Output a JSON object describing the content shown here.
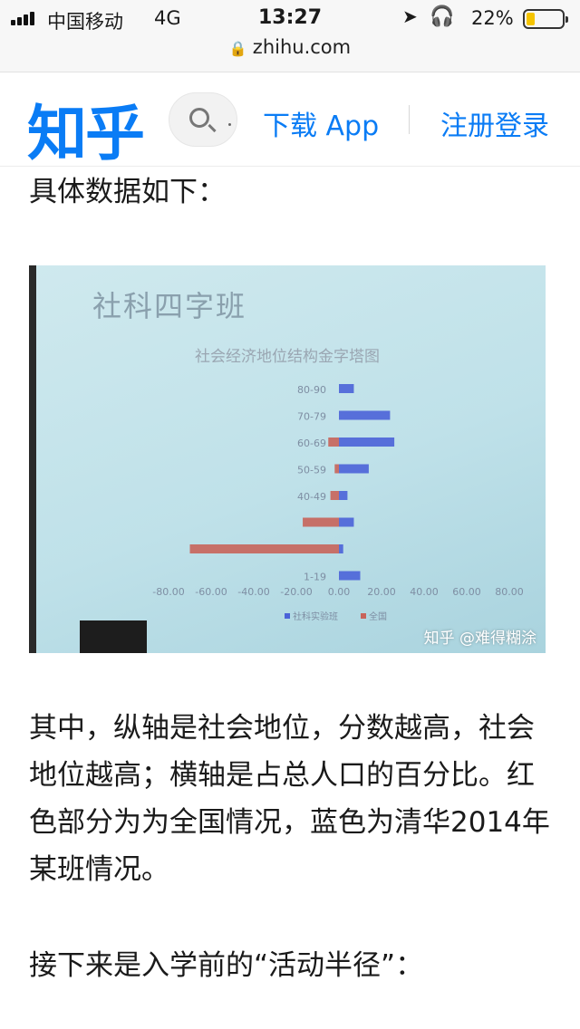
{
  "status": {
    "carrier": "中国移动",
    "network": "4G",
    "time": "13:27",
    "battery": "22%",
    "battery_level": 0.22
  },
  "url": "zhihu.com",
  "header": {
    "logo": "知乎",
    "download": "下载 App",
    "register": "注册登录"
  },
  "article": {
    "p1": "具体数据如下：",
    "p2": "其中，纵轴是社会地位，分数越高，社会地位越高；横轴是占总人口的百分比。红色部分为为全国情况，蓝色为清华2014年某班情况。",
    "p3": "接下来是入学前的“活动半径”："
  },
  "photo": {
    "slide_title": "社科四字班",
    "watermark": "知乎 @难得糊涂",
    "chart_data": {
      "type": "bar",
      "orientation": "horizontal",
      "title": "社会经济地位结构金字塔图",
      "categories": [
        "80-90",
        "70-79",
        "60-69",
        "50-59",
        "40-49",
        "",
        "",
        "1-19"
      ],
      "series": [
        {
          "name": "社科实验班",
          "color": "#4b63d8",
          "values": [
            7,
            24,
            26,
            14,
            4,
            7,
            2,
            10
          ]
        },
        {
          "name": "全国",
          "color": "#c8645a",
          "values": [
            0,
            0,
            -5,
            -2,
            -4,
            -17,
            -70,
            0
          ]
        }
      ],
      "x_ticks": [
        "-80.00",
        "-60.00",
        "-40.00",
        "-20.00",
        "0.00",
        "20.00",
        "40.00",
        "60.00",
        "80.00"
      ],
      "xlim": [
        -80,
        80
      ]
    }
  }
}
